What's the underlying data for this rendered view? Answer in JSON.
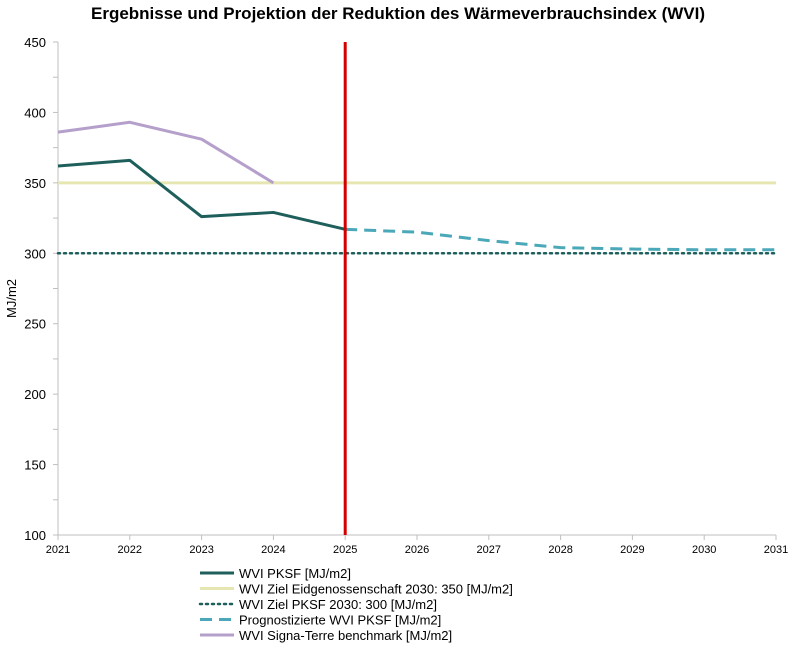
{
  "chart_data": {
    "type": "line",
    "title": "Ergebnisse und Projektion der Reduktion des Wärmeverbrauchsindex (WVI)",
    "xlabel": "",
    "ylabel": "MJ/m2",
    "xlim": [
      2021,
      2031
    ],
    "ylim": [
      100,
      450
    ],
    "x_ticks": [
      2021,
      2022,
      2023,
      2024,
      2025,
      2026,
      2027,
      2028,
      2029,
      2030,
      2031
    ],
    "y_ticks": [
      100,
      150,
      200,
      250,
      300,
      350,
      400,
      450
    ],
    "grid": false,
    "legend_position": "bottom",
    "vertical_marker": {
      "x": 2025,
      "color": "#d40000"
    },
    "series": [
      {
        "name": "WVI PKSF [MJ/m2]",
        "color": "#1f5f5b",
        "style": "solid",
        "x": [
          2021,
          2022,
          2023,
          2024,
          2025
        ],
        "y": [
          362,
          366,
          326,
          329,
          317
        ]
      },
      {
        "name": "WVI Ziel Eidgenossenschaft 2030: 350 [MJ/m2]",
        "color": "#e6e6b3",
        "style": "solid",
        "x": [
          2021,
          2031
        ],
        "y": [
          350,
          350
        ]
      },
      {
        "name": "WVI Ziel PKSF 2030: 300 [MJ/m2]",
        "color": "#1f5f5b",
        "style": "dotted",
        "x": [
          2021,
          2031
        ],
        "y": [
          300,
          300
        ]
      },
      {
        "name": "Prognostizierte WVI PKSF [MJ/m2]",
        "color": "#4aa8b8",
        "style": "dashed",
        "x": [
          2025,
          2026,
          2027,
          2028,
          2029,
          2030,
          2031
        ],
        "y": [
          317,
          315,
          309,
          304,
          303,
          302.5,
          302.5
        ]
      },
      {
        "name": "WVI Signa-Terre benchmark [MJ/m2]",
        "color": "#b59fcb",
        "style": "solid",
        "x": [
          2021,
          2022,
          2023,
          2024
        ],
        "y": [
          386,
          393,
          381,
          350
        ]
      }
    ]
  }
}
